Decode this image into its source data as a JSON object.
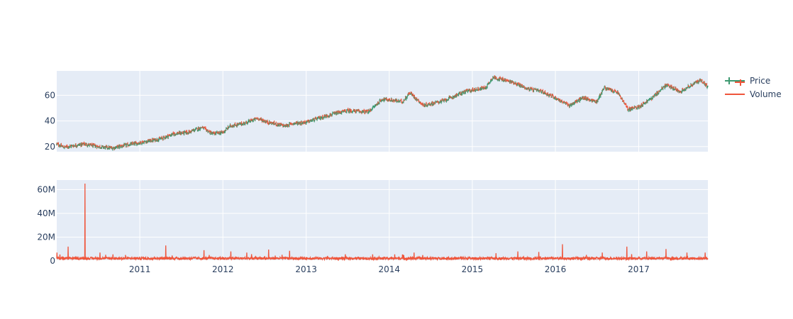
{
  "chart_data": {
    "type": "candlestick+bar",
    "panels": [
      {
        "name": "price-panel",
        "y_ticks": [
          20,
          40,
          60
        ],
        "ylim": [
          16,
          79
        ]
      },
      {
        "name": "volume-panel",
        "y_ticks": [
          0,
          20000000,
          40000000,
          60000000
        ],
        "y_tick_labels": [
          "0",
          "20M",
          "40M",
          "60M"
        ],
        "ylim": [
          0,
          68000000
        ]
      }
    ],
    "x_range": [
      "2010-01-01",
      "2017-11-01"
    ],
    "x_ticks": [
      "2011-01-01",
      "2012-01-01",
      "2013-01-01",
      "2014-01-01",
      "2015-01-01",
      "2016-01-01",
      "2017-01-01"
    ],
    "x_tick_labels": [
      "2011",
      "2012",
      "2013",
      "2014",
      "2015",
      "2016",
      "2017"
    ],
    "grid": true,
    "legend_position": "top-right",
    "legend": [
      {
        "name": "Price",
        "color": "#3d9970"
      },
      {
        "name": "Volume",
        "color": "#ef553b"
      }
    ],
    "colors": {
      "increasing": "#3d9970",
      "decreasing": "#ef553b",
      "volume": "#ef553b",
      "plot_bg": "#e5ecf6"
    },
    "price_anchors": [
      [
        "2010-01-01",
        22
      ],
      [
        "2010-02-01",
        19.5
      ],
      [
        "2010-05-01",
        22
      ],
      [
        "2010-07-01",
        20
      ],
      [
        "2010-09-01",
        18.8
      ],
      [
        "2010-10-15",
        20.5
      ],
      [
        "2011-01-01",
        23
      ],
      [
        "2011-04-01",
        26
      ],
      [
        "2011-06-01",
        30
      ],
      [
        "2011-08-01",
        31
      ],
      [
        "2011-10-01",
        35
      ],
      [
        "2011-11-15",
        30
      ],
      [
        "2012-01-01",
        31
      ],
      [
        "2012-02-01",
        36
      ],
      [
        "2012-04-01",
        38
      ],
      [
        "2012-06-01",
        42
      ],
      [
        "2012-07-15",
        39
      ],
      [
        "2012-10-01",
        36
      ],
      [
        "2012-11-01",
        38
      ],
      [
        "2013-01-01",
        39
      ],
      [
        "2013-04-01",
        44
      ],
      [
        "2013-07-01",
        48
      ],
      [
        "2013-10-01",
        47
      ],
      [
        "2013-12-01",
        57
      ],
      [
        "2014-03-01",
        55
      ],
      [
        "2014-04-01",
        62
      ],
      [
        "2014-06-01",
        52
      ],
      [
        "2014-09-01",
        56
      ],
      [
        "2014-12-01",
        63
      ],
      [
        "2015-03-01",
        66
      ],
      [
        "2015-04-01",
        74
      ],
      [
        "2015-07-01",
        70
      ],
      [
        "2015-09-01",
        65
      ],
      [
        "2015-11-01",
        63
      ],
      [
        "2016-01-01",
        58
      ],
      [
        "2016-03-01",
        52
      ],
      [
        "2016-05-01",
        58
      ],
      [
        "2016-07-01",
        55
      ],
      [
        "2016-08-01",
        66
      ],
      [
        "2016-10-01",
        62
      ],
      [
        "2016-11-15",
        49
      ],
      [
        "2017-01-01",
        51
      ],
      [
        "2017-03-01",
        58
      ],
      [
        "2017-05-01",
        68
      ],
      [
        "2017-07-01",
        63
      ],
      [
        "2017-10-01",
        72
      ],
      [
        "2017-11-01",
        66
      ]
    ],
    "volume_baseline": 2500000,
    "volume_spikes": [
      [
        "2010-01-02",
        7000000
      ],
      [
        "2010-02-20",
        12000000
      ],
      [
        "2010-05-05",
        65000000
      ],
      [
        "2010-07-10",
        7000000
      ],
      [
        "2010-09-05",
        5500000
      ],
      [
        "2011-04-25",
        13000000
      ],
      [
        "2011-10-10",
        9000000
      ],
      [
        "2012-02-05",
        8000000
      ],
      [
        "2012-04-15",
        7000000
      ],
      [
        "2012-07-20",
        9500000
      ],
      [
        "2012-10-20",
        8500000
      ],
      [
        "2013-10-20",
        5500000
      ],
      [
        "2014-01-25",
        5500000
      ],
      [
        "2014-04-20",
        7000000
      ],
      [
        "2015-04-15",
        6500000
      ],
      [
        "2015-07-20",
        8000000
      ],
      [
        "2015-10-20",
        7500000
      ],
      [
        "2016-02-01",
        14000000
      ],
      [
        "2016-07-25",
        7000000
      ],
      [
        "2016-11-10",
        12000000
      ],
      [
        "2017-02-05",
        8000000
      ],
      [
        "2017-05-01",
        10000000
      ],
      [
        "2017-08-01",
        7000000
      ],
      [
        "2017-10-20",
        7000000
      ]
    ]
  }
}
